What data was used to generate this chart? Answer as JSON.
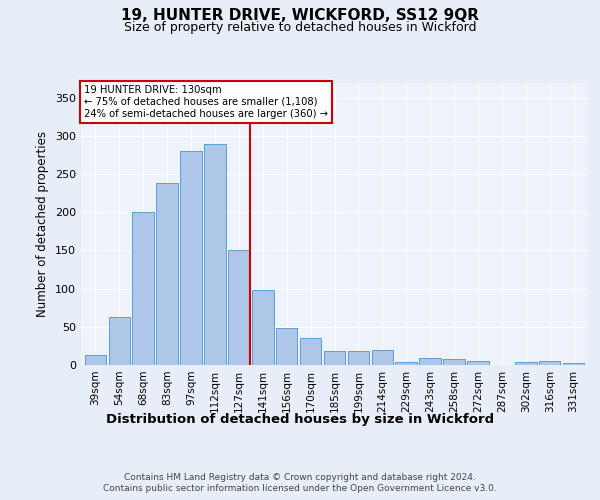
{
  "title1": "19, HUNTER DRIVE, WICKFORD, SS12 9QR",
  "title2": "Size of property relative to detached houses in Wickford",
  "xlabel": "Distribution of detached houses by size in Wickford",
  "ylabel": "Number of detached properties",
  "categories": [
    "39sqm",
    "54sqm",
    "68sqm",
    "83sqm",
    "97sqm",
    "112sqm",
    "127sqm",
    "141sqm",
    "156sqm",
    "170sqm",
    "185sqm",
    "199sqm",
    "214sqm",
    "229sqm",
    "243sqm",
    "258sqm",
    "272sqm",
    "287sqm",
    "302sqm",
    "316sqm",
    "331sqm"
  ],
  "values": [
    13,
    63,
    200,
    238,
    280,
    290,
    150,
    98,
    48,
    35,
    18,
    18,
    19,
    4,
    9,
    8,
    5,
    0,
    4,
    5,
    3
  ],
  "bar_color": "#aec6e8",
  "bar_edge_color": "#5a9fd4",
  "vline_index": 6,
  "marker_label": "19 HUNTER DRIVE: 130sqm",
  "annotation_line1": "← 75% of detached houses are smaller (1,108)",
  "annotation_line2": "24% of semi-detached houses are larger (360) →",
  "vline_color": "#cc0000",
  "footer1": "Contains HM Land Registry data © Crown copyright and database right 2024.",
  "footer2": "Contains public sector information licensed under the Open Government Licence v3.0.",
  "ylim": [
    0,
    370
  ],
  "yticks": [
    0,
    50,
    100,
    150,
    200,
    250,
    300,
    350
  ],
  "bg_color": "#e8eef8",
  "plot_bg_color": "#eef2fa"
}
